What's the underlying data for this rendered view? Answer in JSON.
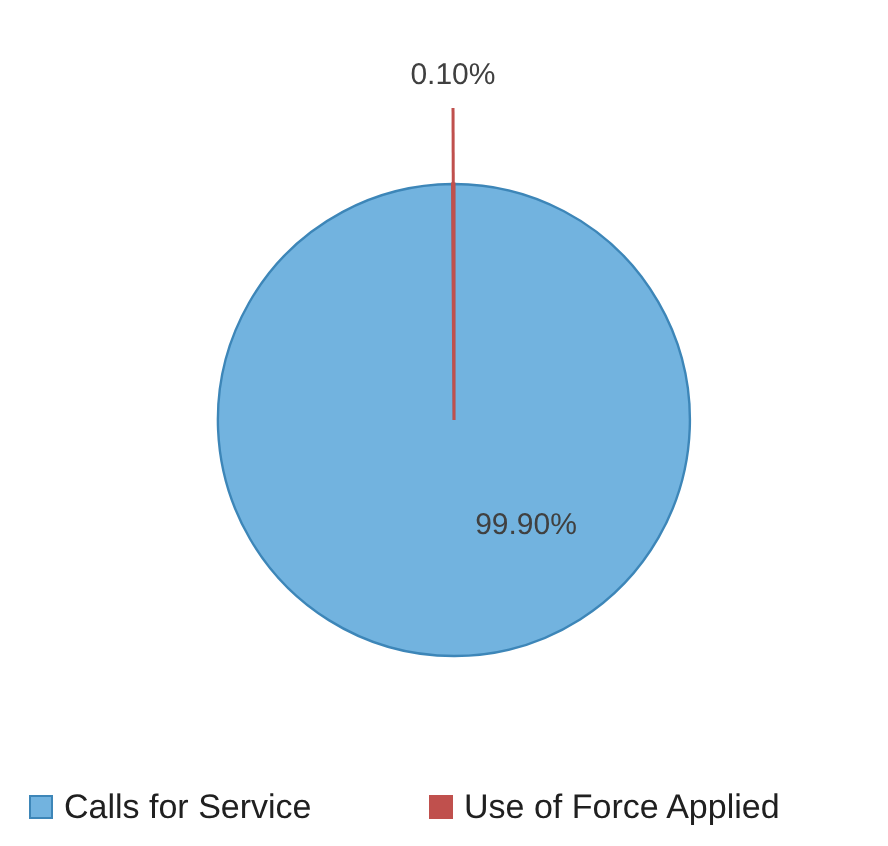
{
  "chart_data": {
    "type": "pie",
    "categories": [
      "Calls for Service",
      "Use of Force Applied"
    ],
    "values": [
      99.9,
      0.1
    ],
    "colors": [
      "#72b3df",
      "#c0504d"
    ],
    "value_labels": [
      "99.90%",
      "0.10%"
    ],
    "legend": "bottom"
  }
}
